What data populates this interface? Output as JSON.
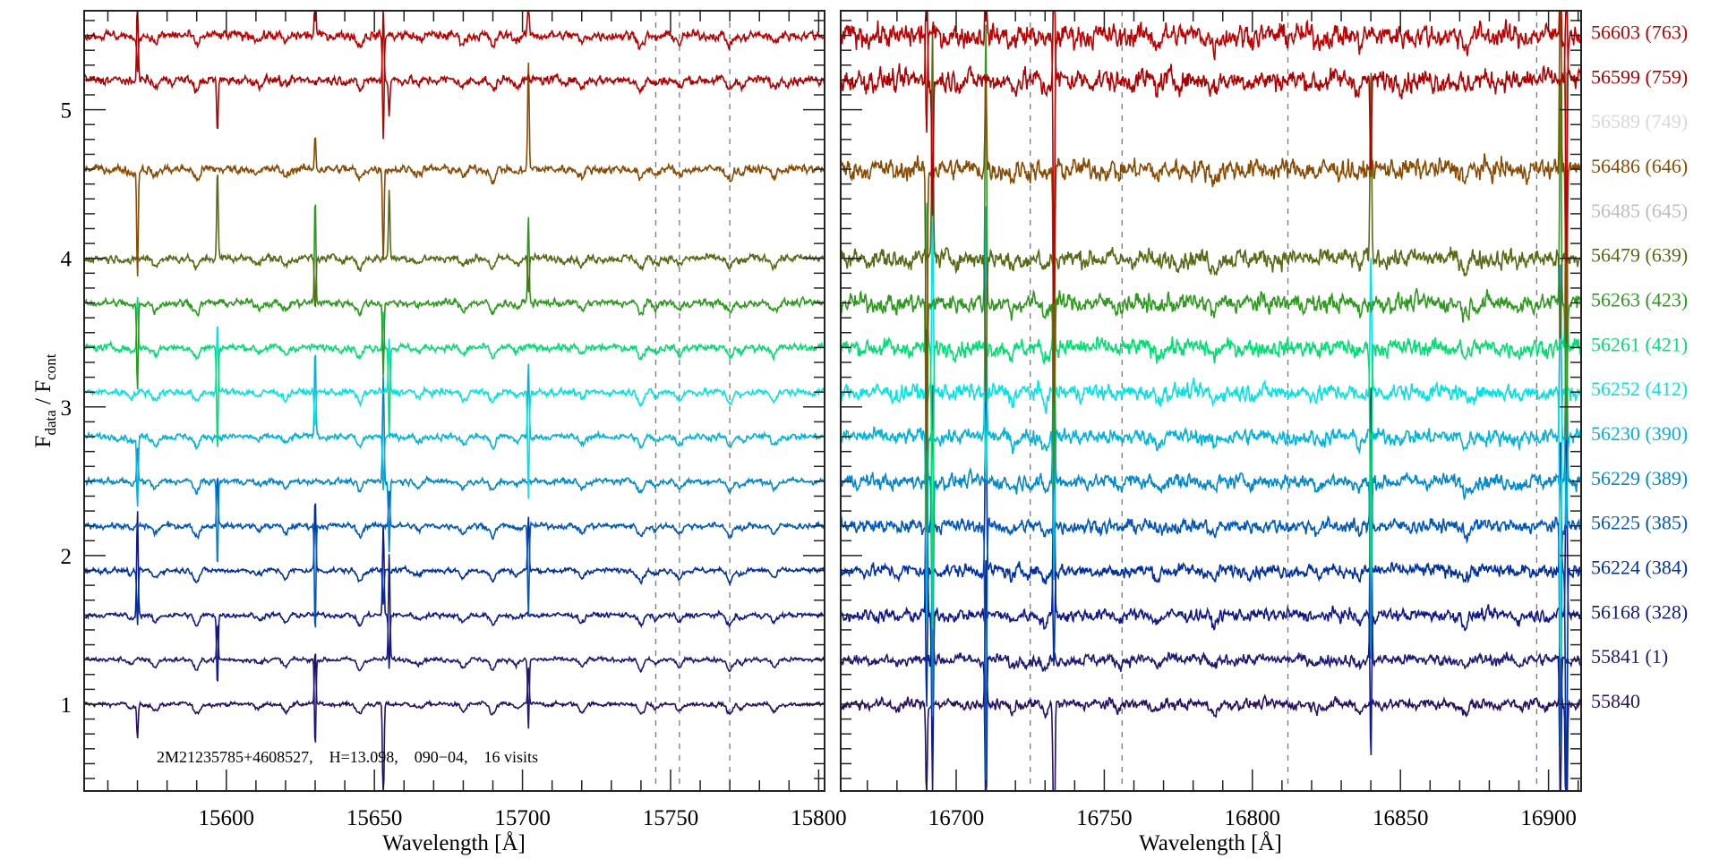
{
  "chart_data": {
    "type": "line",
    "title": "",
    "ylabel_main": "F",
    "ylabel_sub1": "data",
    "ylabel_mid": " / F",
    "ylabel_sub2": "cont",
    "ylim": [
      0.416,
      5.666
    ],
    "yticks": [
      1,
      2,
      3,
      4,
      5
    ],
    "grid": false,
    "annotation": "2M21235785+4608527,    H=13.098,    090−04,    16 visits",
    "panels": [
      {
        "xlabel": "Wavelength [Å]",
        "xlim": [
          15552,
          15802
        ],
        "xticks": [
          15600,
          15650,
          15700,
          15750,
          15800
        ],
        "dashed_lines": [
          15745,
          15753,
          15770
        ],
        "absorption_features": [
          15568,
          15576,
          15590,
          15611,
          15620,
          15645,
          15665,
          15680,
          15690,
          15698,
          15720,
          15740,
          15745,
          15753,
          15770,
          15774,
          15785
        ],
        "sky_lines": [
          15570,
          15597,
          15630,
          15653,
          15655,
          15702
        ],
        "noise": 0.012
      },
      {
        "xlabel": "Wavelength [Å]",
        "xlim": [
          16661,
          16911
        ],
        "xticks": [
          16700,
          16750,
          16800,
          16850,
          16900
        ],
        "dashed_lines": [
          16725,
          16756,
          16812,
          16896
        ],
        "absorption_features": [
          16680,
          16719,
          16730,
          16755,
          16768,
          16787,
          16822,
          16836,
          16872,
          16890
        ],
        "sky_lines": [
          16690,
          16692,
          16710,
          16733,
          16840,
          16904,
          16906
        ],
        "noise": 0.03
      }
    ],
    "series": [
      {
        "name": "56603 (763)",
        "offset": 5.5,
        "color": "#c00000",
        "visible": true
      },
      {
        "name": "56599 (759)",
        "offset": 5.2,
        "color": "#b00000",
        "visible": true
      },
      {
        "name": "56589 (749)",
        "offset": 4.9,
        "color": "#d8d8d8",
        "visible": false
      },
      {
        "name": "56486 (646)",
        "offset": 4.6,
        "color": "#8a4a00",
        "visible": true
      },
      {
        "name": "56485 (645)",
        "offset": 4.3,
        "color": "#bdbdbd",
        "visible": false
      },
      {
        "name": "56479 (639)",
        "offset": 4.0,
        "color": "#566b14",
        "visible": true
      },
      {
        "name": "56263 (423)",
        "offset": 3.7,
        "color": "#2c9a1c",
        "visible": true
      },
      {
        "name": "56261 (421)",
        "offset": 3.4,
        "color": "#00e070",
        "visible": true
      },
      {
        "name": "56252 (412)",
        "offset": 3.1,
        "color": "#00e4e4",
        "visible": true
      },
      {
        "name": "56230 (390)",
        "offset": 2.8,
        "color": "#00b4e0",
        "visible": true
      },
      {
        "name": "56229 (389)",
        "offset": 2.5,
        "color": "#0088d0",
        "visible": true
      },
      {
        "name": "56225 (385)",
        "offset": 2.2,
        "color": "#0058c0",
        "visible": true
      },
      {
        "name": "56224 (384)",
        "offset": 1.9,
        "color": "#0030a8",
        "visible": true
      },
      {
        "name": "56168 (328)",
        "offset": 1.6,
        "color": "#101890",
        "visible": true
      },
      {
        "name": "55841 (1)",
        "offset": 1.3,
        "color": "#1e1a7a",
        "visible": true
      },
      {
        "name": "55840",
        "offset": 1.0,
        "color": "#2a1064",
        "visible": true
      }
    ]
  }
}
